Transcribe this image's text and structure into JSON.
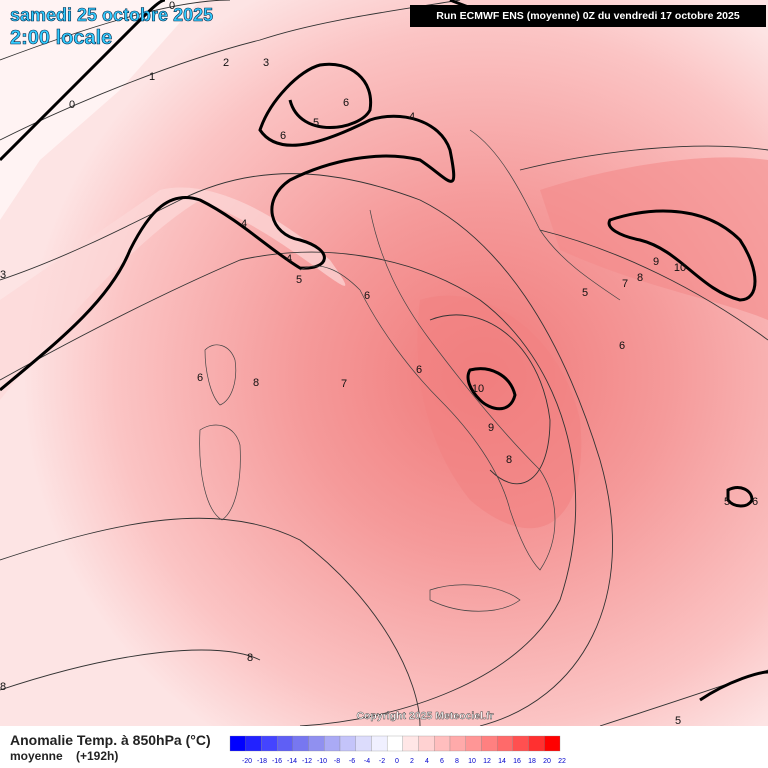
{
  "header": {
    "date": "samedi 25 octobre 2025",
    "time": "2:00 locale",
    "run": "Run ECMWF ENS (moyenne) 0Z du vendredi 17 octobre 2025"
  },
  "map": {
    "copyright": "Copyright 2025 Meteociel.fr",
    "contour_labels": [
      0,
      0,
      1,
      2,
      3,
      6,
      5,
      6,
      4,
      4,
      4,
      5,
      6,
      7,
      6,
      8,
      6,
      10,
      9,
      8,
      5,
      6,
      7,
      8,
      9,
      10,
      5,
      6,
      8,
      8,
      5,
      3
    ]
  },
  "legend": {
    "title": "Anomalie Temp. à 850hPa (°C)",
    "subtitle": "moyenne",
    "lead": "(+192h)",
    "ticks": [
      -20,
      -18,
      -16,
      -14,
      -12,
      -10,
      -8,
      -6,
      -4,
      -2,
      0,
      2,
      4,
      6,
      8,
      10,
      12,
      14,
      16,
      18,
      20,
      22
    ],
    "colors": [
      "#0000ff",
      "#2222ff",
      "#4444ff",
      "#5f5ff5",
      "#7777f0",
      "#9090f0",
      "#aaaaf5",
      "#c4c4fa",
      "#dcdcfc",
      "#f0f0ff",
      "#ffffff",
      "#ffe6e6",
      "#ffd2d2",
      "#ffbebe",
      "#ffaaaa",
      "#ff9696",
      "#ff8080",
      "#ff6a6a",
      "#ff5050",
      "#ff3030",
      "#ff0000"
    ]
  }
}
